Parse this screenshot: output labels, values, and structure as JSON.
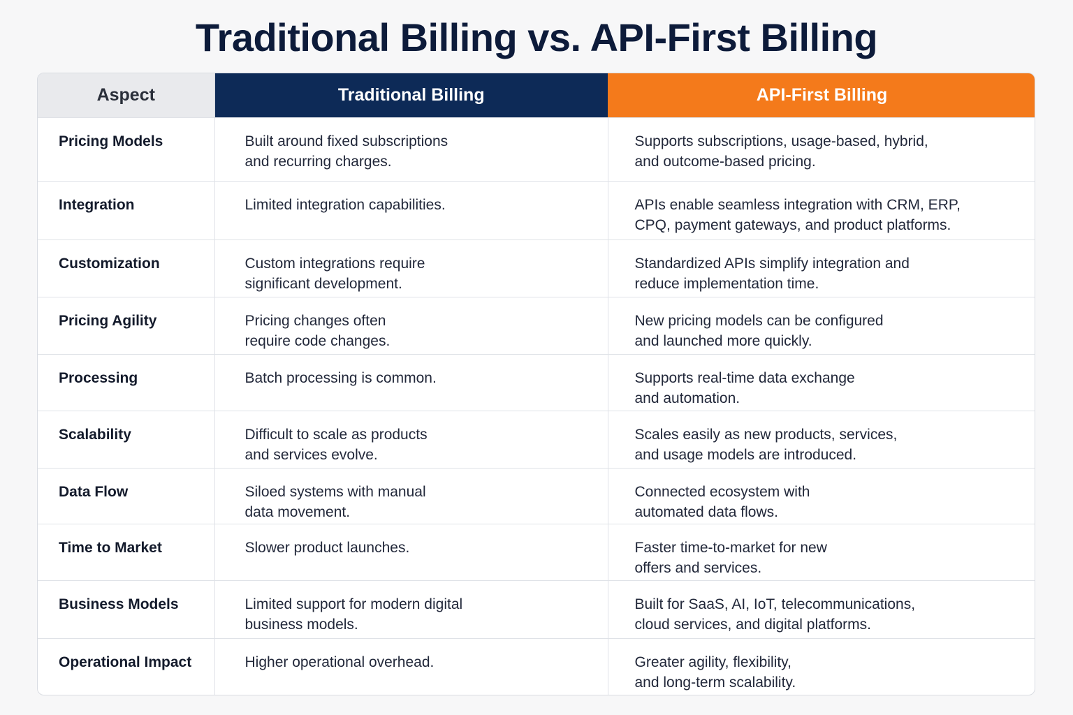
{
  "title": "Traditional Billing vs. API-First Billing",
  "colors": {
    "title": "#0d1b3a",
    "aspect_header_bg": "#e9eaed",
    "traditional_header_bg": "#0d2a57",
    "api_header_bg": "#f47a1b"
  },
  "headers": {
    "aspect": "Aspect",
    "traditional": "Traditional Billing",
    "api_first": "API-First Billing"
  },
  "rows": [
    {
      "aspect": "Pricing Models",
      "traditional": [
        "Built around fixed subscriptions",
        "and recurring charges."
      ],
      "api_first": [
        "Supports subscriptions, usage-based, hybrid,",
        "and outcome-based pricing."
      ]
    },
    {
      "aspect": "Integration",
      "traditional": [
        "Limited integration capabilities.",
        ""
      ],
      "api_first": [
        "APIs enable seamless integration with CRM, ERP,",
        "CPQ, payment gateways, and product platforms."
      ]
    },
    {
      "aspect": "Customization",
      "traditional": [
        "Custom integrations require",
        "significant development."
      ],
      "api_first": [
        "Standardized APIs simplify integration and",
        "reduce implementation time."
      ]
    },
    {
      "aspect": "Pricing Agility",
      "traditional": [
        "Pricing changes often",
        "require code changes."
      ],
      "api_first": [
        "New pricing models can be configured",
        "and launched more quickly."
      ]
    },
    {
      "aspect": "Processing",
      "traditional": [
        "Batch processing is common.",
        ""
      ],
      "api_first": [
        "Supports real-time data exchange",
        "and automation."
      ]
    },
    {
      "aspect": "Scalability",
      "traditional": [
        "Difficult to scale as products",
        "and services evolve."
      ],
      "api_first": [
        "Scales easily as new products, services,",
        "and usage models are introduced."
      ]
    },
    {
      "aspect": "Data Flow",
      "traditional": [
        "Siloed systems with manual",
        "data movement."
      ],
      "api_first": [
        "Connected ecosystem with",
        "automated data flows."
      ]
    },
    {
      "aspect": "Time to Market",
      "traditional": [
        "Slower product launches.",
        ""
      ],
      "api_first": [
        "Faster time-to-market for new",
        "offers and services."
      ]
    },
    {
      "aspect": "Business Models",
      "traditional": [
        "Limited support for modern digital",
        "business models."
      ],
      "api_first": [
        "Built for SaaS, AI, IoT, telecommunications,",
        "cloud services, and digital platforms."
      ]
    },
    {
      "aspect": "Operational Impact",
      "traditional": [
        "Higher operational overhead.",
        ""
      ],
      "api_first": [
        "Greater agility, flexibility,",
        "and long-term scalability."
      ]
    }
  ]
}
